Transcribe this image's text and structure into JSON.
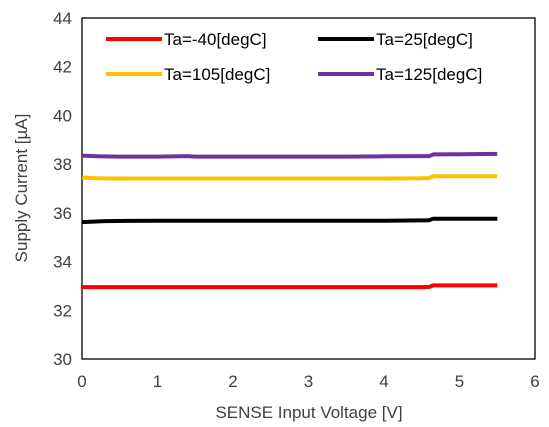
{
  "chart_data": {
    "type": "line",
    "title": "",
    "xlabel": "SENSE Input Voltage [V]",
    "ylabel": "Supply Current [µA]",
    "xlim": [
      0,
      6
    ],
    "ylim": [
      30,
      44
    ],
    "x_ticks": [
      0,
      1,
      2,
      3,
      4,
      5,
      6
    ],
    "y_ticks": [
      30,
      32,
      34,
      36,
      38,
      40,
      42,
      44
    ],
    "grid": false,
    "legend_position": "top",
    "series": [
      {
        "name": "Ta=-40[degC]",
        "color": "#ff0000",
        "x": [
          0,
          0.5,
          1,
          1.5,
          2,
          2.5,
          3,
          3.5,
          4,
          4.5,
          4.6,
          4.65,
          5,
          5.5
        ],
        "y": [
          32.95,
          32.95,
          32.95,
          32.95,
          32.95,
          32.95,
          32.95,
          32.95,
          32.95,
          32.95,
          32.96,
          33.02,
          33.02,
          33.02
        ]
      },
      {
        "name": "Ta=25[degC]",
        "color": "#000000",
        "x": [
          0,
          0.3,
          0.6,
          1,
          1.5,
          2,
          2.5,
          3,
          3.5,
          4,
          4.5,
          4.6,
          4.65,
          5,
          5.5
        ],
        "y": [
          35.62,
          35.66,
          35.67,
          35.68,
          35.68,
          35.68,
          35.68,
          35.68,
          35.68,
          35.68,
          35.69,
          35.7,
          35.76,
          35.76,
          35.76
        ]
      },
      {
        "name": "Ta=105[degC]",
        "color": "#ffc000",
        "x": [
          0,
          0.2,
          0.5,
          1,
          1.5,
          2,
          2.5,
          3,
          3.5,
          4,
          4.5,
          4.6,
          4.65,
          5,
          5.5
        ],
        "y": [
          37.45,
          37.42,
          37.41,
          37.41,
          37.41,
          37.41,
          37.41,
          37.41,
          37.41,
          37.41,
          37.42,
          37.43,
          37.5,
          37.5,
          37.5
        ]
      },
      {
        "name": "Ta=125[degC]",
        "color": "#7030a0",
        "x": [
          0,
          0.2,
          0.5,
          1,
          1.4,
          1.5,
          2,
          2.5,
          3,
          3.5,
          4,
          4.5,
          4.6,
          4.65,
          5,
          5.5
        ],
        "y": [
          38.35,
          38.32,
          38.31,
          38.31,
          38.33,
          38.31,
          38.31,
          38.31,
          38.31,
          38.31,
          38.32,
          38.33,
          38.33,
          38.4,
          38.41,
          38.42
        ]
      }
    ]
  }
}
